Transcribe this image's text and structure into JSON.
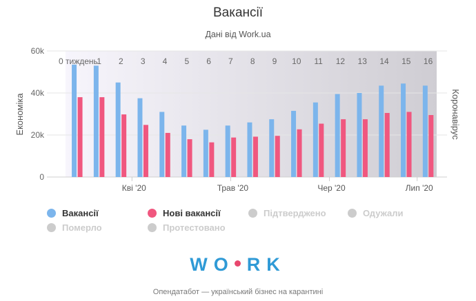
{
  "title": "Вакансії",
  "subtitle": "Дані від Work.ua",
  "colors": {
    "vacancies": "#7cb5ec",
    "new_vacancies": "#f0577f",
    "inactive": "#cccccc",
    "band_start": "#f7f5fc",
    "band_end": "#cfcdd3"
  },
  "chart_data": {
    "type": "bar",
    "x": [
      0,
      1,
      2,
      3,
      4,
      5,
      6,
      7,
      8,
      9,
      10,
      11,
      12,
      13,
      14,
      15,
      16
    ],
    "week_labels": [
      "0 тиждень",
      "1",
      "2",
      "3",
      "4",
      "5",
      "6",
      "7",
      "8",
      "9",
      "10",
      "11",
      "12",
      "13",
      "14",
      "15",
      "16"
    ],
    "month_ticks": [
      "Кві '20",
      "Трав '20",
      "Чер '20",
      "Лип '20"
    ],
    "series": [
      {
        "name": "Вакансії",
        "values": [
          53500,
          53000,
          45000,
          37500,
          31000,
          24500,
          22500,
          24500,
          26000,
          27500,
          31500,
          35500,
          39500,
          40000,
          43500,
          44500,
          43500
        ]
      },
      {
        "name": "Нові вакансії",
        "values": [
          38000,
          38000,
          29800,
          24800,
          21000,
          18000,
          16500,
          18800,
          19200,
          19600,
          22700,
          25400,
          27500,
          27500,
          30500,
          31000,
          29500
        ]
      }
    ],
    "ylim": [
      0,
      60000
    ],
    "yticks": [
      "0",
      "20k",
      "40k",
      "60k"
    ],
    "ylabel": "Економіка",
    "ylabel_right": "Коронавірус",
    "grid": true,
    "legend_position": "bottom"
  },
  "legend": [
    {
      "label": "Вакансії",
      "active": true,
      "color": "#7cb5ec"
    },
    {
      "label": "Нові вакансії",
      "active": true,
      "color": "#f0577f"
    },
    {
      "label": "Підтверджено",
      "active": false,
      "color": "#cccccc"
    },
    {
      "label": "Одужали",
      "active": false,
      "color": "#cccccc"
    },
    {
      "label": "Померло",
      "active": false,
      "color": "#cccccc"
    },
    {
      "label": "Протестовано",
      "active": false,
      "color": "#cccccc"
    }
  ],
  "logo": {
    "left": "WO",
    "right": "RK"
  },
  "footer": "Опендатабот — український бізнес на карантині"
}
